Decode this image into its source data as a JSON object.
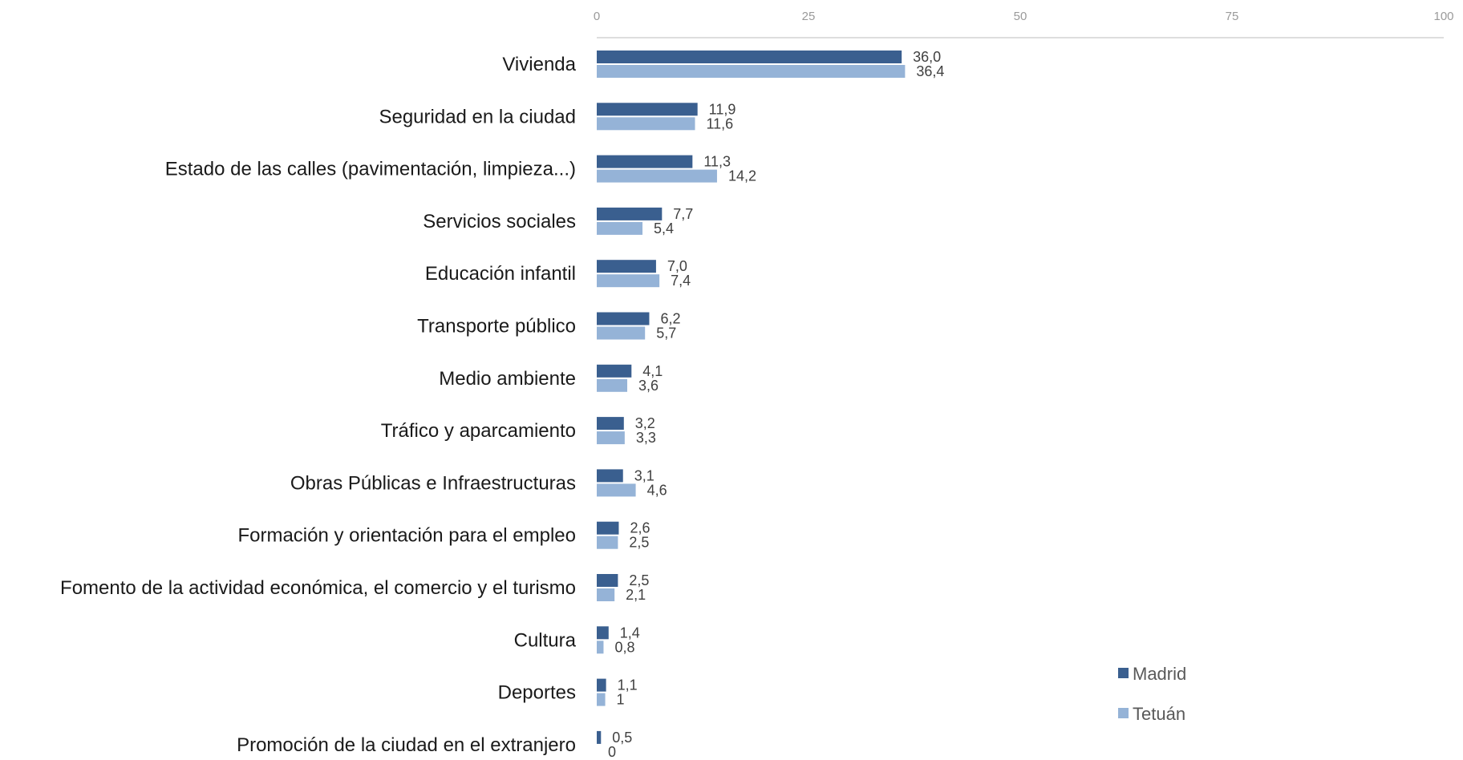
{
  "chart_data": {
    "type": "bar",
    "orientation": "horizontal",
    "categories": [
      "Vivienda",
      "Seguridad en la ciudad",
      "Estado de las calles (pavimentación, limpieza...)",
      "Servicios sociales",
      "Educación infantil",
      "Transporte público",
      "Medio ambiente",
      "Tráfico y aparcamiento",
      "Obras Públicas e Infraestructuras",
      "Formación y orientación para el empleo",
      "Fomento de la actividad económica, el comercio y el turismo",
      "Cultura",
      "Deportes",
      "Promoción de la ciudad en el extranjero"
    ],
    "series": [
      {
        "name": "Madrid",
        "color": "#3a5f8f",
        "values": [
          36.0,
          11.9,
          11.3,
          7.7,
          7.0,
          6.2,
          4.1,
          3.2,
          3.1,
          2.6,
          2.5,
          1.4,
          1.1,
          0.5
        ],
        "labels": [
          "36,0",
          "11,9",
          "11,3",
          "7,7",
          "7,0",
          "6,2",
          "4,1",
          "3,2",
          "3,1",
          "2,6",
          "2,5",
          "1,4",
          "1,1",
          "0,5"
        ]
      },
      {
        "name": "Tetuán",
        "color": "#95b3d7",
        "values": [
          36.4,
          11.6,
          14.2,
          5.4,
          7.4,
          5.7,
          3.6,
          3.3,
          4.6,
          2.5,
          2.1,
          0.8,
          1,
          0
        ],
        "labels": [
          "36,4",
          "11,6",
          "14,2",
          "5,4",
          "7,4",
          "5,7",
          "3,6",
          "3,3",
          "4,6",
          "2,5",
          "2,1",
          "0,8",
          "1",
          "0"
        ]
      }
    ],
    "xlim": [
      0,
      100
    ],
    "xticks": [
      0,
      25,
      50,
      75,
      100
    ],
    "xtick_labels": [
      "0",
      "25",
      "50",
      "75",
      "100"
    ],
    "axis_position": "top",
    "grid": false,
    "legend": "bottom-right",
    "title": "",
    "xlabel": "",
    "ylabel": ""
  }
}
